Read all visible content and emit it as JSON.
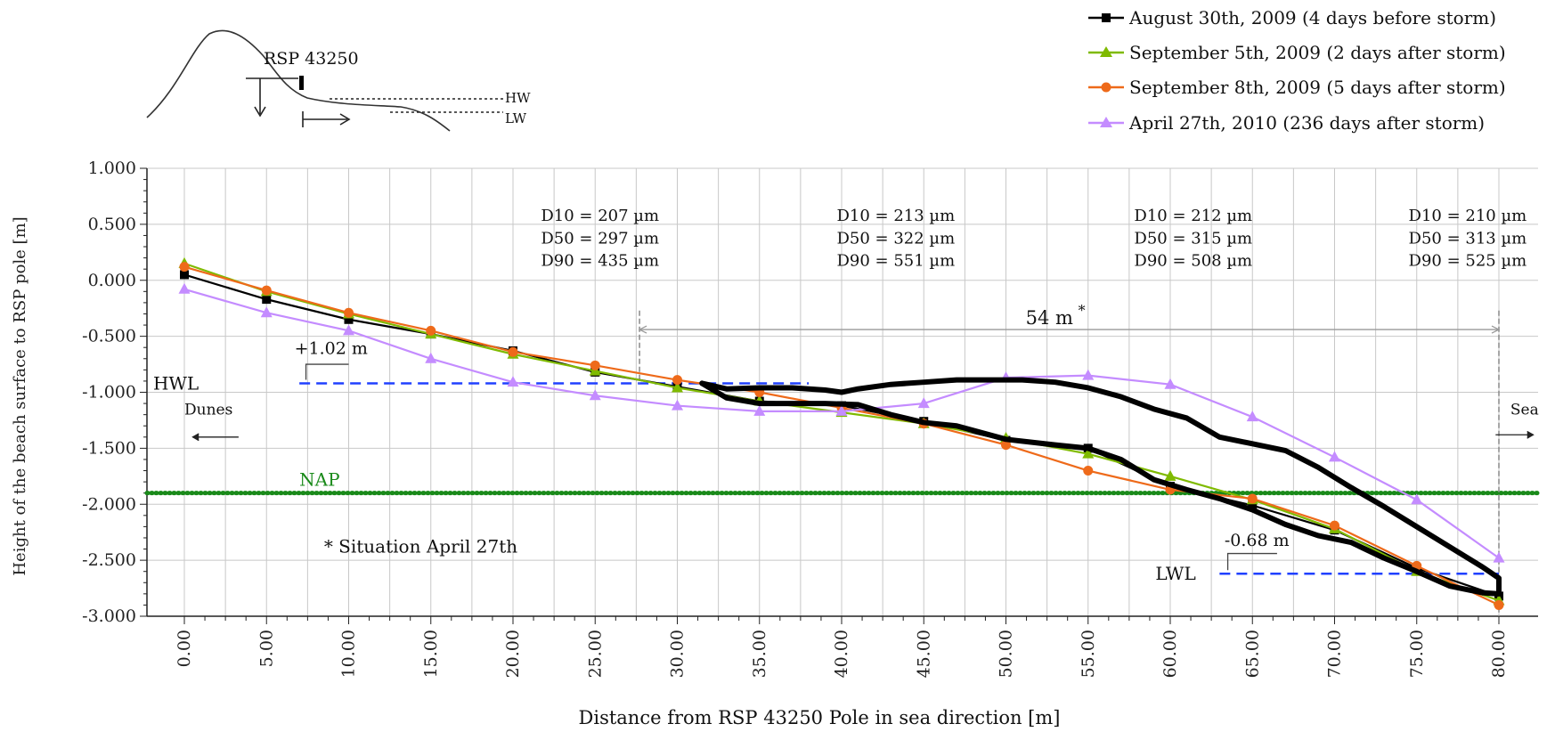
{
  "chart_data": {
    "type": "line",
    "ylabel": "Height of the beach surface to RSP pole [m]",
    "xlabel": "Distance from RSP 43250 Pole in sea direction [m]",
    "xlim": [
      -2,
      82
    ],
    "ylim": [
      -3.0,
      1.0
    ],
    "grid": true,
    "legend_position": "top-right",
    "x_ticks": [
      0,
      5,
      10,
      15,
      20,
      25,
      30,
      35,
      40,
      45,
      50,
      55,
      60,
      65,
      70,
      75,
      80
    ],
    "x_tick_labels": [
      "0.00",
      "5.00",
      "10.00",
      "15.00",
      "20.00",
      "25.00",
      "30.00",
      "35.00",
      "40.00",
      "45.00",
      "50.00",
      "55.00",
      "60.00",
      "65.00",
      "70.00",
      "75.00",
      "80.00"
    ],
    "y_ticks": [
      1.0,
      0.5,
      0.0,
      -0.5,
      -1.0,
      -1.5,
      -2.0,
      -2.5,
      -3.0
    ],
    "y_tick_labels": [
      "1.000",
      "0.500",
      "0.000",
      "-0.500",
      "-1.000",
      "-1.500",
      "-2.000",
      "-2.500",
      "-3.000"
    ],
    "series": [
      {
        "name": "August 30th, 2009 (4 days before storm)",
        "color": "#000000",
        "marker": "square",
        "x": [
          0,
          5,
          10,
          15,
          20,
          25,
          30,
          35,
          40,
          45,
          50,
          55,
          60,
          65,
          70,
          75,
          80
        ],
        "y": [
          0.05,
          -0.17,
          -0.35,
          -0.48,
          -0.63,
          -0.82,
          -0.95,
          -1.08,
          -1.12,
          -1.26,
          -1.43,
          -1.5,
          -1.84,
          -2.01,
          -2.23,
          -2.57,
          -2.82
        ]
      },
      {
        "name": "September 5th, 2009 (2 days after storm)",
        "color": "#7fba00",
        "marker": "triangle",
        "x": [
          0,
          5,
          10,
          15,
          20,
          25,
          30,
          35,
          40,
          45,
          50,
          55,
          60,
          65,
          70,
          75,
          80
        ],
        "y": [
          0.15,
          -0.1,
          -0.3,
          -0.48,
          -0.66,
          -0.81,
          -0.96,
          -1.08,
          -1.18,
          -1.28,
          -1.41,
          -1.55,
          -1.75,
          -1.96,
          -2.22,
          -2.6,
          -2.86
        ]
      },
      {
        "name": "September 8th, 2009 (5 days after storm)",
        "color": "#ee6a1a",
        "marker": "circle",
        "x": [
          0,
          5,
          10,
          15,
          20,
          25,
          30,
          35,
          40,
          45,
          50,
          55,
          60,
          65,
          70,
          75,
          80
        ],
        "y": [
          0.12,
          -0.09,
          -0.29,
          -0.45,
          -0.64,
          -0.76,
          -0.89,
          -1.0,
          -1.14,
          -1.28,
          -1.47,
          -1.7,
          -1.87,
          -1.95,
          -2.19,
          -2.55,
          -2.9
        ]
      },
      {
        "name": "April 27th, 2010 (236 days after storm)",
        "color": "#c48cff",
        "marker": "triangle",
        "x": [
          0,
          5,
          10,
          15,
          20,
          25,
          30,
          35,
          40,
          45,
          50,
          55,
          60,
          65,
          70,
          75,
          80
        ],
        "y": [
          -0.08,
          -0.29,
          -0.45,
          -0.7,
          -0.91,
          -1.03,
          -1.12,
          -1.17,
          -1.17,
          -1.1,
          -0.87,
          -0.85,
          -0.93,
          -1.22,
          -1.58,
          -1.96,
          -2.48
        ]
      }
    ],
    "scribble": {
      "color": "#000000",
      "x": [
        31.5,
        33,
        35,
        37,
        39,
        41,
        43,
        45,
        47,
        50,
        53,
        55,
        57,
        59,
        61,
        63,
        65,
        67,
        69,
        71,
        73,
        75,
        77,
        79,
        80,
        80,
        79,
        77,
        75,
        73,
        71,
        69,
        67,
        65,
        63,
        61,
        59,
        57,
        55,
        53,
        51,
        49,
        47,
        45,
        43,
        41,
        40,
        39,
        37,
        35,
        33,
        31.5
      ],
      "y": [
        -0.92,
        -1.05,
        -1.1,
        -1.1,
        -1.1,
        -1.11,
        -1.2,
        -1.27,
        -1.3,
        -1.42,
        -1.47,
        -1.5,
        -1.6,
        -1.78,
        -1.87,
        -1.95,
        -2.05,
        -2.18,
        -2.28,
        -2.34,
        -2.48,
        -2.6,
        -2.73,
        -2.79,
        -2.8,
        -2.66,
        -2.56,
        -2.38,
        -2.2,
        -2.02,
        -1.85,
        -1.67,
        -1.52,
        -1.46,
        -1.4,
        -1.23,
        -1.15,
        -1.04,
        -0.96,
        -0.91,
        -0.89,
        -0.89,
        -0.89,
        -0.91,
        -0.93,
        -0.97,
        -1.0,
        -0.98,
        -0.96,
        -0.96,
        -0.97,
        -0.92
      ]
    },
    "reference_lines": {
      "hwl": {
        "label": "HWL",
        "y": -0.92,
        "x0": 7,
        "x1": 38,
        "color": "#2040ff"
      },
      "lwl": {
        "label": "LWL",
        "y": -2.62,
        "x0": 63,
        "x1": 80,
        "color": "#2040ff"
      },
      "nap": {
        "label": "NAP",
        "y": -1.9,
        "color": "#1a8a1a"
      }
    },
    "annotations": {
      "hwl_offset": "+1.02 m",
      "lwl_offset": "-0.68 m",
      "distance": "54 m",
      "distance_star": "*",
      "footnote": "* Situation April 27th",
      "dunes": "Dunes",
      "sea": "Sea",
      "grain_sizes": [
        {
          "d10": "D10 = 207 µm",
          "d50": "D50 = 297 µm",
          "d90": "D90 = 435 µm"
        },
        {
          "d10": "D10 = 213 µm",
          "d50": "D50 = 322 µm",
          "d90": "D90 = 551 µm"
        },
        {
          "d10": "D10 = 212 µm",
          "d50": "D50 = 315 µm",
          "d90": "D90 = 508 µm"
        },
        {
          "d10": "D10 = 210 µm",
          "d50": "D50 = 313 µm",
          "d90": "D90 = 525 µm"
        }
      ]
    },
    "inset": {
      "pole": "RSP 43250",
      "hw": "HW",
      "lw": "LW"
    }
  }
}
